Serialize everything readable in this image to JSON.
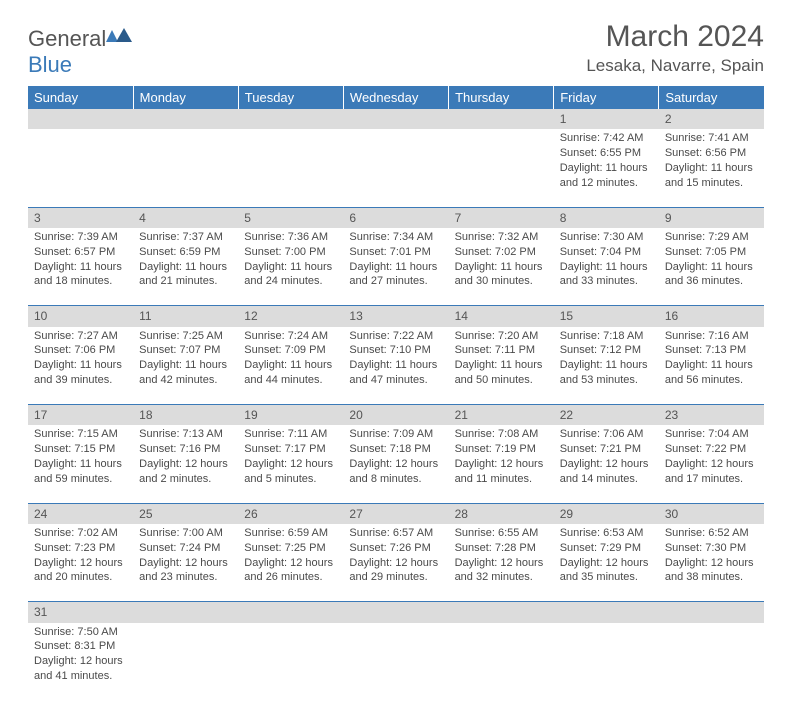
{
  "logo": {
    "prefix": "General",
    "suffix": "Blue"
  },
  "title": "March 2024",
  "location": "Lesaka, Navarre, Spain",
  "colors": {
    "header_bg": "#3b7ab8",
    "header_text": "#ffffff",
    "daynum_bg": "#dcdcdc",
    "text": "#4a4a4a",
    "rule": "#3b7ab8",
    "page_bg": "#ffffff"
  },
  "weekdays": [
    "Sunday",
    "Monday",
    "Tuesday",
    "Wednesday",
    "Thursday",
    "Friday",
    "Saturday"
  ],
  "weeks": [
    [
      null,
      null,
      null,
      null,
      null,
      {
        "n": "1",
        "sr": "7:42 AM",
        "ss": "6:55 PM",
        "dl": "11 hours and 12 minutes."
      },
      {
        "n": "2",
        "sr": "7:41 AM",
        "ss": "6:56 PM",
        "dl": "11 hours and 15 minutes."
      }
    ],
    [
      {
        "n": "3",
        "sr": "7:39 AM",
        "ss": "6:57 PM",
        "dl": "11 hours and 18 minutes."
      },
      {
        "n": "4",
        "sr": "7:37 AM",
        "ss": "6:59 PM",
        "dl": "11 hours and 21 minutes."
      },
      {
        "n": "5",
        "sr": "7:36 AM",
        "ss": "7:00 PM",
        "dl": "11 hours and 24 minutes."
      },
      {
        "n": "6",
        "sr": "7:34 AM",
        "ss": "7:01 PM",
        "dl": "11 hours and 27 minutes."
      },
      {
        "n": "7",
        "sr": "7:32 AM",
        "ss": "7:02 PM",
        "dl": "11 hours and 30 minutes."
      },
      {
        "n": "8",
        "sr": "7:30 AM",
        "ss": "7:04 PM",
        "dl": "11 hours and 33 minutes."
      },
      {
        "n": "9",
        "sr": "7:29 AM",
        "ss": "7:05 PM",
        "dl": "11 hours and 36 minutes."
      }
    ],
    [
      {
        "n": "10",
        "sr": "7:27 AM",
        "ss": "7:06 PM",
        "dl": "11 hours and 39 minutes."
      },
      {
        "n": "11",
        "sr": "7:25 AM",
        "ss": "7:07 PM",
        "dl": "11 hours and 42 minutes."
      },
      {
        "n": "12",
        "sr": "7:24 AM",
        "ss": "7:09 PM",
        "dl": "11 hours and 44 minutes."
      },
      {
        "n": "13",
        "sr": "7:22 AM",
        "ss": "7:10 PM",
        "dl": "11 hours and 47 minutes."
      },
      {
        "n": "14",
        "sr": "7:20 AM",
        "ss": "7:11 PM",
        "dl": "11 hours and 50 minutes."
      },
      {
        "n": "15",
        "sr": "7:18 AM",
        "ss": "7:12 PM",
        "dl": "11 hours and 53 minutes."
      },
      {
        "n": "16",
        "sr": "7:16 AM",
        "ss": "7:13 PM",
        "dl": "11 hours and 56 minutes."
      }
    ],
    [
      {
        "n": "17",
        "sr": "7:15 AM",
        "ss": "7:15 PM",
        "dl": "11 hours and 59 minutes."
      },
      {
        "n": "18",
        "sr": "7:13 AM",
        "ss": "7:16 PM",
        "dl": "12 hours and 2 minutes."
      },
      {
        "n": "19",
        "sr": "7:11 AM",
        "ss": "7:17 PM",
        "dl": "12 hours and 5 minutes."
      },
      {
        "n": "20",
        "sr": "7:09 AM",
        "ss": "7:18 PM",
        "dl": "12 hours and 8 minutes."
      },
      {
        "n": "21",
        "sr": "7:08 AM",
        "ss": "7:19 PM",
        "dl": "12 hours and 11 minutes."
      },
      {
        "n": "22",
        "sr": "7:06 AM",
        "ss": "7:21 PM",
        "dl": "12 hours and 14 minutes."
      },
      {
        "n": "23",
        "sr": "7:04 AM",
        "ss": "7:22 PM",
        "dl": "12 hours and 17 minutes."
      }
    ],
    [
      {
        "n": "24",
        "sr": "7:02 AM",
        "ss": "7:23 PM",
        "dl": "12 hours and 20 minutes."
      },
      {
        "n": "25",
        "sr": "7:00 AM",
        "ss": "7:24 PM",
        "dl": "12 hours and 23 minutes."
      },
      {
        "n": "26",
        "sr": "6:59 AM",
        "ss": "7:25 PM",
        "dl": "12 hours and 26 minutes."
      },
      {
        "n": "27",
        "sr": "6:57 AM",
        "ss": "7:26 PM",
        "dl": "12 hours and 29 minutes."
      },
      {
        "n": "28",
        "sr": "6:55 AM",
        "ss": "7:28 PM",
        "dl": "12 hours and 32 minutes."
      },
      {
        "n": "29",
        "sr": "6:53 AM",
        "ss": "7:29 PM",
        "dl": "12 hours and 35 minutes."
      },
      {
        "n": "30",
        "sr": "6:52 AM",
        "ss": "7:30 PM",
        "dl": "12 hours and 38 minutes."
      }
    ],
    [
      {
        "n": "31",
        "sr": "7:50 AM",
        "ss": "8:31 PM",
        "dl": "12 hours and 41 minutes."
      },
      null,
      null,
      null,
      null,
      null,
      null
    ]
  ],
  "labels": {
    "sunrise": "Sunrise:",
    "sunset": "Sunset:",
    "daylight": "Daylight:"
  }
}
